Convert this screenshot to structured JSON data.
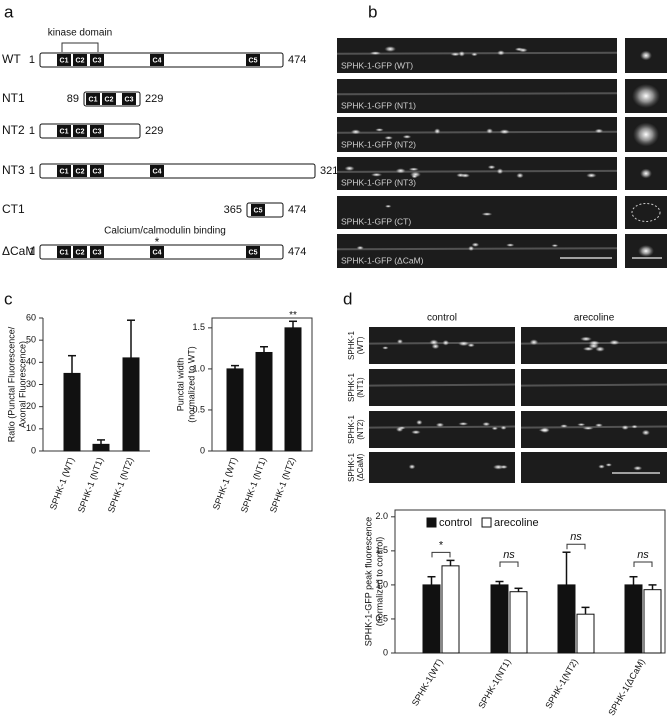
{
  "panel_labels": [
    "a",
    "b",
    "c",
    "d"
  ],
  "constructs": {
    "domain_title": "kinase domain",
    "rows": [
      {
        "name": "WT",
        "start": 1,
        "end": 474,
        "domains": [
          "C1",
          "C2",
          "C3",
          "C4",
          "C5"
        ]
      },
      {
        "name": "NT1",
        "start": 89,
        "end": 229,
        "domains": [
          "C1",
          "C2",
          "C3"
        ]
      },
      {
        "name": "NT2",
        "start": 1,
        "end": 229,
        "domains": [
          "C1",
          "C2",
          "C3"
        ]
      },
      {
        "name": "NT3",
        "start": 1,
        "end": 321,
        "domains": [
          "C1",
          "C2",
          "C3",
          "C4"
        ]
      },
      {
        "name": "CT1",
        "start": 365,
        "end": 474,
        "domains": [
          "C5"
        ]
      },
      {
        "name": "ΔCaM",
        "start": 1,
        "end": 474,
        "domains": [
          "C1",
          "C2",
          "C3",
          "C4",
          "C5"
        ],
        "note": "Calcium/calmodulin binding",
        "marker": "*"
      }
    ]
  },
  "images_b": [
    "SPHK-1-GFP (WT)",
    "SPHK-1-GFP (NT1)",
    "SPHK-1-GFP (NT2)",
    "SPHK-1-GFP (NT3)",
    "SPHK-1-GFP (CT)",
    "SPHK-1-GFP (ΔCaM)"
  ],
  "images_d": {
    "columns": [
      "control",
      "arecoline"
    ],
    "rows": [
      [
        "SPHK-1",
        "(WT)"
      ],
      [
        "SPHK-1",
        "(NT1)"
      ],
      [
        "SPHK-1",
        "(NT2)"
      ],
      [
        "SPHK-1",
        "(ΔCaM)"
      ]
    ]
  },
  "chart_data": [
    {
      "type": "bar",
      "ylabel": [
        "Ratio (Punctal Fluorescence/",
        "Axonal Fluorescence)"
      ],
      "categories": [
        "SPHK-1 (WT)",
        "SPHK-1 (NT1)",
        "SPHK-1 (NT2)"
      ],
      "series": [
        {
          "color": "#111111",
          "values": [
            35,
            3,
            42
          ],
          "errors": [
            8,
            2,
            17
          ]
        }
      ],
      "ylim": [
        0,
        60
      ],
      "yticks": [
        0,
        10,
        20,
        30,
        40,
        50,
        60
      ],
      "frame": false
    },
    {
      "type": "bar",
      "ylabel": [
        "Punctal width",
        "(normalized to WT)"
      ],
      "categories": [
        "SPHK-1 (WT)",
        "SPHK-1 (NT1)",
        "SPHK-1 (NT2)"
      ],
      "series": [
        {
          "color": "#111111",
          "values": [
            1.0,
            1.2,
            1.5
          ],
          "errors": [
            0.04,
            0.07,
            0.08
          ]
        }
      ],
      "annotations": [
        null,
        null,
        "**"
      ],
      "ylim": [
        0,
        1.62
      ],
      "yticks": [
        0,
        0.5,
        {
          "value": 1,
          "label": "1.0"
        },
        1.5
      ],
      "frame": true
    },
    {
      "type": "grouped-bar",
      "ylabel": [
        "SPHK-1-GFP peak fluorescence",
        "(normalized to control)"
      ],
      "categories": [
        "SPHK-1(WT)",
        "SPHK-1(NT1)",
        "SPHK-1(NT2)",
        "SPHK-1(ΔCaM)"
      ],
      "series": [
        {
          "name": "control",
          "color": "#111111",
          "values": [
            1.0,
            1.0,
            1.0,
            1.0
          ],
          "errors": [
            0.12,
            0.05,
            0.48,
            0.12
          ]
        },
        {
          "name": "arecoline",
          "color": "#ffffff",
          "values": [
            1.28,
            0.9,
            0.57,
            0.93
          ],
          "errors": [
            0.08,
            0.05,
            0.1,
            0.07
          ]
        }
      ],
      "annotations": [
        "*",
        "ns",
        "ns",
        "ns"
      ],
      "ylim": [
        0,
        2.1
      ],
      "yticks": [
        0,
        0.5,
        {
          "value": 1,
          "label": "1.0"
        },
        1.5,
        {
          "value": 2,
          "label": "2.0"
        }
      ],
      "frame": true
    }
  ]
}
